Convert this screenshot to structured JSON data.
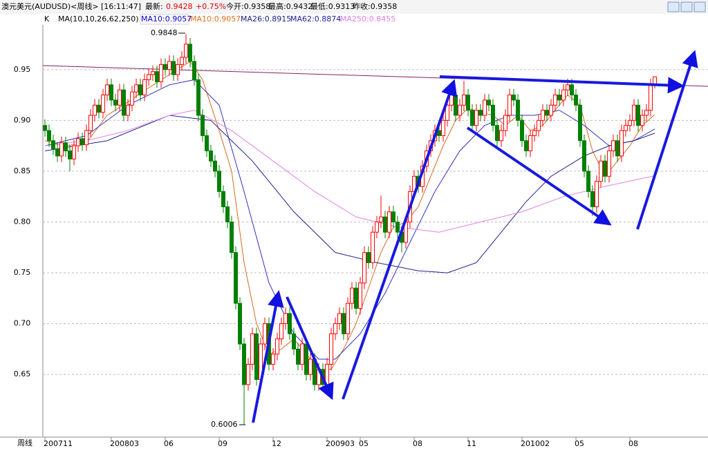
{
  "header": {
    "symbol": "澳元美元(AUDUSD)<周线>",
    "time": "[16:11:47]",
    "latest_label": "最新:",
    "latest": "0.9428",
    "change": "+0.75%",
    "open": "今开:0.9358",
    "high": "最高:0.9432",
    "low": "最低:0.9313",
    "prev_close": "昨收:0.9358"
  },
  "indicator_bar": {
    "k": "K",
    "ma_params": "MA(10,10,26,62,250)",
    "items": [
      {
        "text": "MA10:0.9057",
        "color": "#0000c0"
      },
      {
        "text": "MA10:0.9057",
        "color": "#e07020"
      },
      {
        "text": "MA26:0.8915",
        "color": "#202080"
      },
      {
        "text": "MA62:0.8874",
        "color": "#2020a0"
      },
      {
        "text": "MA250:0.8455",
        "color": "#e080e0"
      }
    ]
  },
  "chart_data": {
    "type": "candlestick",
    "period_label": "周线",
    "up_color": "#ff0000",
    "down_color": "#008000",
    "ylim": [
      0.589,
      0.994
    ],
    "yticks": [
      0.65,
      {
        "value": 0.7,
        "label": "0.70"
      },
      0.75,
      {
        "value": 0.8,
        "label": "0.80"
      },
      0.85,
      {
        "value": 0.9,
        "label": "0.90"
      },
      0.95
    ],
    "grid": true,
    "xticks": [
      {
        "value": 0,
        "label": "200711"
      },
      {
        "value": 16,
        "label": "200803"
      },
      {
        "value": 29,
        "label": "06"
      },
      {
        "value": 42,
        "label": "09"
      },
      {
        "value": 55,
        "label": "12"
      },
      {
        "value": 68,
        "label": "200903"
      },
      {
        "value": 76,
        "label": "05"
      },
      {
        "value": 89,
        "label": "08"
      },
      {
        "value": 102,
        "label": "11"
      },
      {
        "value": 115,
        "label": "201002"
      },
      {
        "value": 128,
        "label": "05"
      },
      {
        "value": 141,
        "label": "08"
      }
    ],
    "annotations": {
      "high": "0.9848",
      "low": "0.6006"
    },
    "candles": [
      [
        0.895,
        0.901,
        0.884,
        0.89
      ],
      [
        0.89,
        0.896,
        0.874,
        0.88
      ],
      [
        0.88,
        0.886,
        0.866,
        0.872
      ],
      [
        0.872,
        0.878,
        0.859,
        0.865
      ],
      [
        0.865,
        0.884,
        0.859,
        0.878
      ],
      [
        0.878,
        0.884,
        0.864,
        0.87
      ],
      [
        0.87,
        0.876,
        0.85,
        0.862
      ],
      [
        0.862,
        0.881,
        0.856,
        0.875
      ],
      [
        0.875,
        0.888,
        0.869,
        0.882
      ],
      [
        0.882,
        0.888,
        0.87,
        0.876
      ],
      [
        0.876,
        0.896,
        0.87,
        0.89
      ],
      [
        0.89,
        0.911,
        0.884,
        0.905
      ],
      [
        0.905,
        0.921,
        0.899,
        0.915
      ],
      [
        0.915,
        0.921,
        0.902,
        0.908
      ],
      [
        0.908,
        0.931,
        0.902,
        0.925
      ],
      [
        0.925,
        0.941,
        0.919,
        0.935
      ],
      [
        0.935,
        0.941,
        0.914,
        0.92
      ],
      [
        0.92,
        0.926,
        0.909,
        0.915
      ],
      [
        0.915,
        0.936,
        0.909,
        0.93
      ],
      [
        0.93,
        0.936,
        0.899,
        0.905
      ],
      [
        0.905,
        0.921,
        0.899,
        0.915
      ],
      [
        0.915,
        0.934,
        0.909,
        0.928
      ],
      [
        0.928,
        0.941,
        0.922,
        0.935
      ],
      [
        0.935,
        0.941,
        0.919,
        0.925
      ],
      [
        0.925,
        0.946,
        0.919,
        0.94
      ],
      [
        0.94,
        0.951,
        0.934,
        0.945
      ],
      [
        0.945,
        0.954,
        0.939,
        0.948
      ],
      [
        0.948,
        0.954,
        0.932,
        0.938
      ],
      [
        0.938,
        0.961,
        0.932,
        0.955
      ],
      [
        0.955,
        0.961,
        0.944,
        0.95
      ],
      [
        0.95,
        0.964,
        0.944,
        0.958
      ],
      [
        0.958,
        0.964,
        0.939,
        0.945
      ],
      [
        0.945,
        0.961,
        0.939,
        0.955
      ],
      [
        0.955,
        0.968,
        0.949,
        0.962
      ],
      [
        0.962,
        0.9848,
        0.956,
        0.975
      ],
      [
        0.975,
        0.981,
        0.952,
        0.958
      ],
      [
        0.958,
        0.964,
        0.934,
        0.94
      ],
      [
        0.94,
        0.946,
        0.899,
        0.905
      ],
      [
        0.905,
        0.911,
        0.879,
        0.885
      ],
      [
        0.885,
        0.891,
        0.864,
        0.87
      ],
      [
        0.87,
        0.876,
        0.854,
        0.86
      ],
      [
        0.86,
        0.866,
        0.844,
        0.85
      ],
      [
        0.85,
        0.856,
        0.824,
        0.83
      ],
      [
        0.83,
        0.836,
        0.809,
        0.815
      ],
      [
        0.815,
        0.821,
        0.794,
        0.8
      ],
      [
        0.8,
        0.806,
        0.764,
        0.77
      ],
      [
        0.77,
        0.776,
        0.714,
        0.72
      ],
      [
        0.72,
        0.726,
        0.674,
        0.68
      ],
      [
        0.68,
        0.686,
        0.6006,
        0.64
      ],
      [
        0.64,
        0.666,
        0.634,
        0.66
      ],
      [
        0.66,
        0.696,
        0.654,
        0.69
      ],
      [
        0.69,
        0.696,
        0.639,
        0.645
      ],
      [
        0.645,
        0.686,
        0.639,
        0.68
      ],
      [
        0.68,
        0.706,
        0.674,
        0.7
      ],
      [
        0.7,
        0.706,
        0.654,
        0.66
      ],
      [
        0.66,
        0.676,
        0.654,
        0.67
      ],
      [
        0.67,
        0.691,
        0.664,
        0.685
      ],
      [
        0.685,
        0.706,
        0.679,
        0.7
      ],
      [
        0.7,
        0.716,
        0.694,
        0.71
      ],
      [
        0.71,
        0.716,
        0.684,
        0.69
      ],
      [
        0.69,
        0.696,
        0.669,
        0.675
      ],
      [
        0.675,
        0.681,
        0.654,
        0.66
      ],
      [
        0.66,
        0.686,
        0.654,
        0.68
      ],
      [
        0.68,
        0.686,
        0.644,
        0.65
      ],
      [
        0.65,
        0.671,
        0.644,
        0.665
      ],
      [
        0.665,
        0.671,
        0.634,
        0.64
      ],
      [
        0.64,
        0.661,
        0.634,
        0.655
      ],
      [
        0.655,
        0.661,
        0.634,
        0.64
      ],
      [
        0.64,
        0.666,
        0.634,
        0.66
      ],
      [
        0.66,
        0.696,
        0.654,
        0.69
      ],
      [
        0.69,
        0.706,
        0.684,
        0.7
      ],
      [
        0.7,
        0.716,
        0.694,
        0.71
      ],
      [
        0.71,
        0.716,
        0.684,
        0.69
      ],
      [
        0.69,
        0.726,
        0.684,
        0.72
      ],
      [
        0.72,
        0.741,
        0.714,
        0.735
      ],
      [
        0.735,
        0.741,
        0.709,
        0.715
      ],
      [
        0.715,
        0.746,
        0.709,
        0.74
      ],
      [
        0.74,
        0.776,
        0.734,
        0.77
      ],
      [
        0.77,
        0.776,
        0.754,
        0.76
      ],
      [
        0.76,
        0.796,
        0.754,
        0.79
      ],
      [
        0.79,
        0.806,
        0.784,
        0.8
      ],
      [
        0.8,
        0.826,
        0.794,
        0.805
      ],
      [
        0.805,
        0.811,
        0.784,
        0.79
      ],
      [
        0.79,
        0.816,
        0.784,
        0.81
      ],
      [
        0.81,
        0.816,
        0.794,
        0.8
      ],
      [
        0.8,
        0.806,
        0.784,
        0.79
      ],
      [
        0.79,
        0.796,
        0.77,
        0.78
      ],
      [
        0.78,
        0.806,
        0.774,
        0.8
      ],
      [
        0.8,
        0.836,
        0.794,
        0.83
      ],
      [
        0.83,
        0.851,
        0.824,
        0.845
      ],
      [
        0.845,
        0.851,
        0.829,
        0.835
      ],
      [
        0.835,
        0.861,
        0.829,
        0.855
      ],
      [
        0.855,
        0.876,
        0.849,
        0.87
      ],
      [
        0.87,
        0.886,
        0.864,
        0.88
      ],
      [
        0.88,
        0.896,
        0.874,
        0.89
      ],
      [
        0.89,
        0.896,
        0.879,
        0.885
      ],
      [
        0.885,
        0.906,
        0.879,
        0.9
      ],
      [
        0.9,
        0.921,
        0.894,
        0.915
      ],
      [
        0.915,
        0.931,
        0.909,
        0.925
      ],
      [
        0.925,
        0.931,
        0.899,
        0.905
      ],
      [
        0.905,
        0.921,
        0.899,
        0.915
      ],
      [
        0.915,
        0.939,
        0.909,
        0.925
      ],
      [
        0.925,
        0.931,
        0.904,
        0.91
      ],
      [
        0.91,
        0.916,
        0.889,
        0.895
      ],
      [
        0.895,
        0.916,
        0.889,
        0.91
      ],
      [
        0.91,
        0.916,
        0.899,
        0.905
      ],
      [
        0.905,
        0.926,
        0.899,
        0.92
      ],
      [
        0.92,
        0.926,
        0.909,
        0.915
      ],
      [
        0.915,
        0.921,
        0.889,
        0.895
      ],
      [
        0.895,
        0.901,
        0.874,
        0.88
      ],
      [
        0.88,
        0.896,
        0.874,
        0.89
      ],
      [
        0.89,
        0.911,
        0.884,
        0.905
      ],
      [
        0.905,
        0.931,
        0.899,
        0.925
      ],
      [
        0.925,
        0.931,
        0.914,
        0.92
      ],
      [
        0.92,
        0.926,
        0.894,
        0.9
      ],
      [
        0.9,
        0.906,
        0.874,
        0.88
      ],
      [
        0.88,
        0.886,
        0.864,
        0.87
      ],
      [
        0.87,
        0.891,
        0.864,
        0.885
      ],
      [
        0.885,
        0.896,
        0.879,
        0.89
      ],
      [
        0.89,
        0.906,
        0.884,
        0.9
      ],
      [
        0.9,
        0.916,
        0.894,
        0.91
      ],
      [
        0.91,
        0.916,
        0.899,
        0.905
      ],
      [
        0.905,
        0.921,
        0.899,
        0.915
      ],
      [
        0.915,
        0.931,
        0.909,
        0.925
      ],
      [
        0.925,
        0.931,
        0.914,
        0.92
      ],
      [
        0.92,
        0.936,
        0.914,
        0.93
      ],
      [
        0.93,
        0.941,
        0.924,
        0.935
      ],
      [
        0.935,
        0.941,
        0.919,
        0.925
      ],
      [
        0.925,
        0.931,
        0.909,
        0.915
      ],
      [
        0.915,
        0.921,
        0.874,
        0.88
      ],
      [
        0.88,
        0.886,
        0.844,
        0.85
      ],
      [
        0.85,
        0.856,
        0.824,
        0.83
      ],
      [
        0.83,
        0.836,
        0.806,
        0.815
      ],
      [
        0.815,
        0.846,
        0.809,
        0.84
      ],
      [
        0.84,
        0.866,
        0.834,
        0.86
      ],
      [
        0.86,
        0.866,
        0.839,
        0.845
      ],
      [
        0.845,
        0.876,
        0.839,
        0.87
      ],
      [
        0.87,
        0.886,
        0.864,
        0.88
      ],
      [
        0.88,
        0.886,
        0.859,
        0.865
      ],
      [
        0.865,
        0.896,
        0.859,
        0.89
      ],
      [
        0.89,
        0.901,
        0.884,
        0.895
      ],
      [
        0.895,
        0.906,
        0.889,
        0.9
      ],
      [
        0.9,
        0.921,
        0.894,
        0.915
      ],
      [
        0.915,
        0.921,
        0.889,
        0.895
      ],
      [
        0.895,
        0.911,
        0.889,
        0.905
      ],
      [
        0.905,
        0.916,
        0.899,
        0.91
      ],
      [
        0.91,
        0.941,
        0.904,
        0.9358
      ],
      [
        0.9358,
        0.9432,
        0.9313,
        0.9428
      ]
    ],
    "series": [
      {
        "name": "MA10",
        "color": "#d86820",
        "x": [
          0,
          5,
          10,
          15,
          20,
          25,
          30,
          35,
          38,
          42,
          45,
          48,
          51,
          54,
          57,
          60,
          63,
          66,
          69,
          72,
          75,
          78,
          81,
          84,
          87,
          90,
          93,
          96,
          99,
          102,
          105,
          108,
          111,
          114,
          117,
          120,
          123,
          126,
          129,
          132,
          135,
          138,
          141,
          144,
          147
        ],
        "values": [
          0.88,
          0.875,
          0.878,
          0.905,
          0.918,
          0.932,
          0.945,
          0.958,
          0.94,
          0.89,
          0.85,
          0.76,
          0.7,
          0.67,
          0.675,
          0.685,
          0.67,
          0.655,
          0.655,
          0.675,
          0.7,
          0.735,
          0.77,
          0.795,
          0.8,
          0.815,
          0.845,
          0.875,
          0.9,
          0.912,
          0.908,
          0.905,
          0.895,
          0.905,
          0.89,
          0.895,
          0.91,
          0.925,
          0.915,
          0.87,
          0.845,
          0.86,
          0.875,
          0.895,
          0.9057
        ]
      },
      {
        "name": "MA26",
        "color": "#3030c0",
        "x": [
          0,
          10,
          20,
          30,
          36,
          42,
          48,
          54,
          60,
          66,
          70,
          76,
          82,
          88,
          94,
          100,
          106,
          112,
          118,
          124,
          130,
          136,
          142,
          147
        ],
        "values": [
          0.875,
          0.885,
          0.915,
          0.935,
          0.94,
          0.915,
          0.83,
          0.74,
          0.69,
          0.665,
          0.665,
          0.69,
          0.73,
          0.78,
          0.83,
          0.87,
          0.895,
          0.905,
          0.905,
          0.91,
          0.895,
          0.875,
          0.88,
          0.8915
        ]
      },
      {
        "name": "MA62",
        "color": "#202090",
        "x": [
          0,
          15,
          30,
          40,
          50,
          60,
          70,
          80,
          90,
          97,
          104,
          110,
          116,
          122,
          130,
          136,
          142,
          147
        ],
        "values": [
          0.87,
          0.88,
          0.905,
          0.9,
          0.86,
          0.81,
          0.77,
          0.76,
          0.752,
          0.75,
          0.76,
          0.79,
          0.82,
          0.845,
          0.865,
          0.875,
          0.88,
          0.8874
        ]
      },
      {
        "name": "MA250",
        "color": "#e080e0",
        "x": [
          0,
          10,
          20,
          30,
          36,
          45,
          55,
          65,
          75,
          85,
          95,
          105,
          115,
          125,
          135,
          147
        ],
        "values": [
          0.875,
          0.88,
          0.89,
          0.905,
          0.91,
          0.89,
          0.86,
          0.83,
          0.805,
          0.795,
          0.79,
          0.8,
          0.81,
          0.825,
          0.835,
          0.8455
        ]
      }
    ]
  }
}
